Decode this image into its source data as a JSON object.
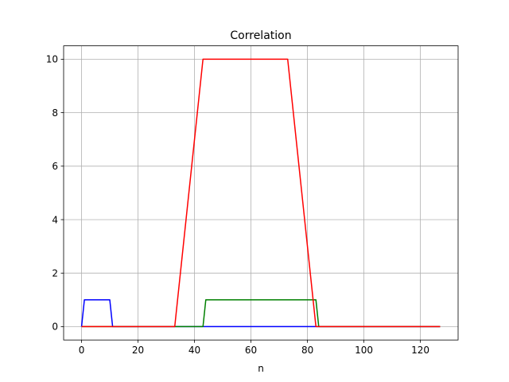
{
  "chart_data": {
    "type": "line",
    "title": "Correlation",
    "xlabel": "n",
    "ylabel": "",
    "xlim": [
      -6.35,
      133.35
    ],
    "ylim": [
      -0.5,
      10.5
    ],
    "xticks": [
      0,
      20,
      40,
      60,
      80,
      100,
      120
    ],
    "yticks": [
      0,
      2,
      4,
      6,
      8,
      10
    ],
    "grid": true,
    "series": [
      {
        "color": "#0000ff",
        "x": [
          0,
          1,
          10,
          11,
          127
        ],
        "y": [
          0,
          1,
          1,
          0,
          0
        ]
      },
      {
        "color": "#008000",
        "x": [
          0,
          43,
          44,
          83,
          84,
          127
        ],
        "y": [
          0,
          0,
          1,
          1,
          0,
          0
        ]
      },
      {
        "color": "#ff0000",
        "x": [
          0,
          33,
          43,
          73,
          83,
          127
        ],
        "y": [
          0,
          0,
          10,
          10,
          0,
          0
        ]
      }
    ]
  }
}
